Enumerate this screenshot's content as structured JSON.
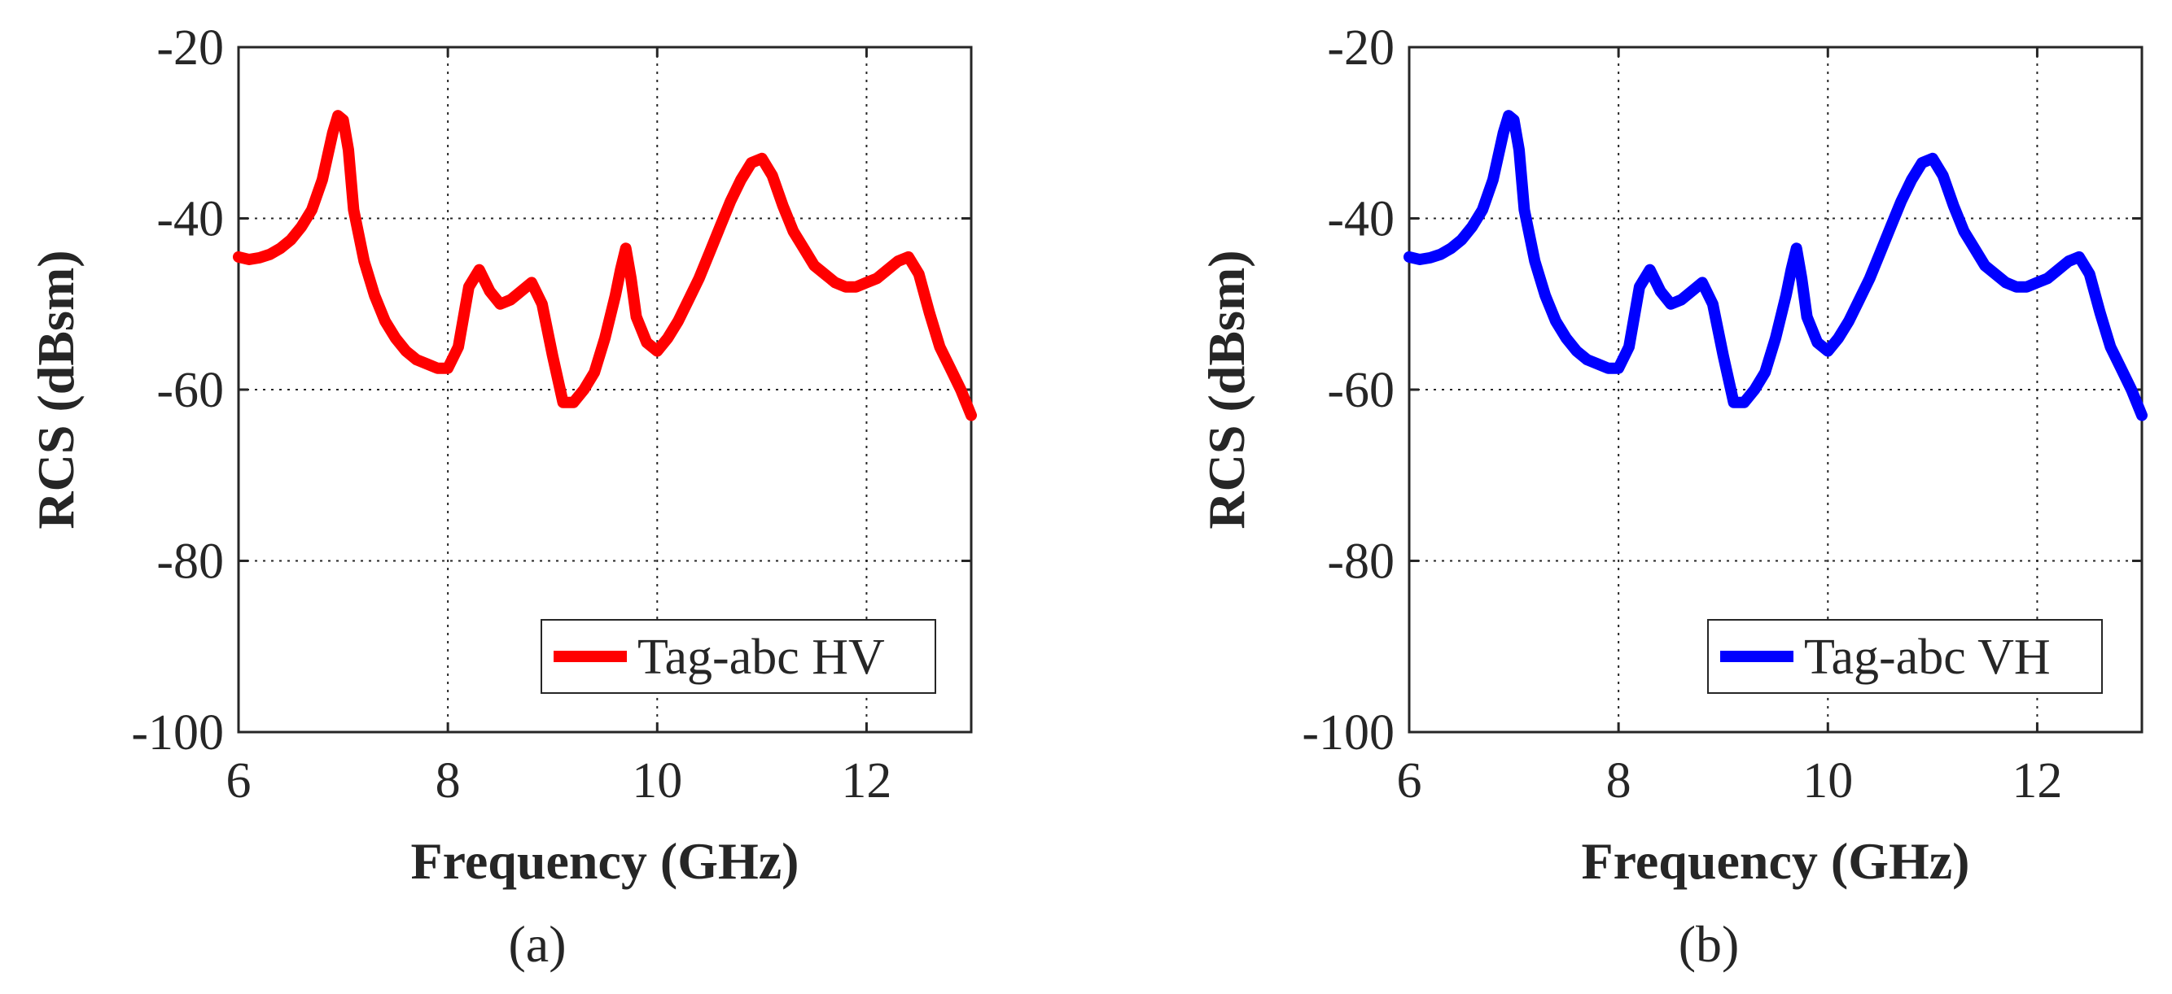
{
  "chart_data": [
    {
      "type": "line",
      "panel_label": "(a)",
      "xlabel": "Frequency (GHz)",
      "ylabel": "RCS (dBsm)",
      "xlim": [
        6,
        13
      ],
      "ylim": [
        -100,
        -20
      ],
      "xticks": [
        "6",
        "8",
        "10",
        "12"
      ],
      "yticks": [
        "-20",
        "-40",
        "-60",
        "-80",
        "-100"
      ],
      "grid": true,
      "legend_position": "bottom-right",
      "series": [
        {
          "name": "Tag-abc HV",
          "color": "#ff0000",
          "x": [
            6.0,
            6.1,
            6.2,
            6.3,
            6.4,
            6.5,
            6.6,
            6.7,
            6.8,
            6.9,
            6.95,
            7.0,
            7.05,
            7.1,
            7.2,
            7.3,
            7.4,
            7.5,
            7.6,
            7.7,
            7.8,
            7.9,
            8.0,
            8.1,
            8.2,
            8.3,
            8.4,
            8.5,
            8.6,
            8.7,
            8.8,
            8.9,
            9.0,
            9.1,
            9.2,
            9.3,
            9.4,
            9.5,
            9.6,
            9.65,
            9.7,
            9.75,
            9.8,
            9.9,
            10.0,
            10.1,
            10.2,
            10.3,
            10.4,
            10.5,
            10.6,
            10.7,
            10.8,
            10.9,
            11.0,
            11.1,
            11.2,
            11.3,
            11.4,
            11.5,
            11.6,
            11.7,
            11.8,
            11.9,
            12.0,
            12.1,
            12.2,
            12.3,
            12.4,
            12.5,
            12.6,
            12.7,
            12.8,
            12.9,
            13.0
          ],
          "values": [
            -44.5,
            -44.8,
            -44.6,
            -44.2,
            -43.5,
            -42.5,
            -41,
            -39,
            -35.5,
            -30,
            -28,
            -28.5,
            -32,
            -39,
            -45,
            -49,
            -52,
            -54,
            -55.5,
            -56.5,
            -57,
            -57.5,
            -57.5,
            -55,
            -48,
            -46,
            -48.5,
            -50,
            -49.5,
            -48.5,
            -47.5,
            -50,
            -56,
            -61.5,
            -61.5,
            -60,
            -58,
            -54,
            -49,
            -46,
            -43.5,
            -47,
            -51.5,
            -54.5,
            -55.5,
            -54,
            -52,
            -49.5,
            -47,
            -44,
            -41,
            -38,
            -35.5,
            -33.5,
            -33,
            -35,
            -38.5,
            -41.5,
            -43.5,
            -45.5,
            -46.5,
            -47.5,
            -48,
            -48,
            -47.5,
            -47,
            -46,
            -45,
            -44.5,
            -46.5,
            -51,
            -55,
            -57.5,
            -60,
            -63
          ]
        }
      ]
    },
    {
      "type": "line",
      "panel_label": "(b)",
      "xlabel": "Frequency (GHz)",
      "ylabel": "RCS (dBsm)",
      "xlim": [
        6,
        13
      ],
      "ylim": [
        -100,
        -20
      ],
      "xticks": [
        "6",
        "8",
        "10",
        "12"
      ],
      "yticks": [
        "-20",
        "-40",
        "-60",
        "-80",
        "-100"
      ],
      "grid": true,
      "legend_position": "bottom-right",
      "series": [
        {
          "name": "Tag-abc VH",
          "color": "#0000ff",
          "x": [
            6.0,
            6.1,
            6.2,
            6.3,
            6.4,
            6.5,
            6.6,
            6.7,
            6.8,
            6.9,
            6.95,
            7.0,
            7.05,
            7.1,
            7.2,
            7.3,
            7.4,
            7.5,
            7.6,
            7.7,
            7.8,
            7.9,
            8.0,
            8.1,
            8.2,
            8.3,
            8.4,
            8.5,
            8.6,
            8.7,
            8.8,
            8.9,
            9.0,
            9.1,
            9.2,
            9.3,
            9.4,
            9.5,
            9.6,
            9.65,
            9.7,
            9.75,
            9.8,
            9.9,
            10.0,
            10.1,
            10.2,
            10.3,
            10.4,
            10.5,
            10.6,
            10.7,
            10.8,
            10.9,
            11.0,
            11.1,
            11.2,
            11.3,
            11.4,
            11.5,
            11.6,
            11.7,
            11.8,
            11.9,
            12.0,
            12.1,
            12.2,
            12.3,
            12.4,
            12.5,
            12.6,
            12.7,
            12.8,
            12.9,
            13.0
          ],
          "values": [
            -44.5,
            -44.8,
            -44.6,
            -44.2,
            -43.5,
            -42.5,
            -41,
            -39,
            -35.5,
            -30,
            -28,
            -28.5,
            -32,
            -39,
            -45,
            -49,
            -52,
            -54,
            -55.5,
            -56.5,
            -57,
            -57.5,
            -57.5,
            -55,
            -48,
            -46,
            -48.5,
            -50,
            -49.5,
            -48.5,
            -47.5,
            -50,
            -56,
            -61.5,
            -61.5,
            -60,
            -58,
            -54,
            -49,
            -46,
            -43.5,
            -47,
            -51.5,
            -54.5,
            -55.5,
            -54,
            -52,
            -49.5,
            -47,
            -44,
            -41,
            -38,
            -35.5,
            -33.5,
            -33,
            -35,
            -38.5,
            -41.5,
            -43.5,
            -45.5,
            -46.5,
            -47.5,
            -48,
            -48,
            -47.5,
            -47,
            -46,
            -45,
            -44.5,
            -46.5,
            -51,
            -55,
            -57.5,
            -60,
            -63
          ]
        }
      ]
    }
  ]
}
